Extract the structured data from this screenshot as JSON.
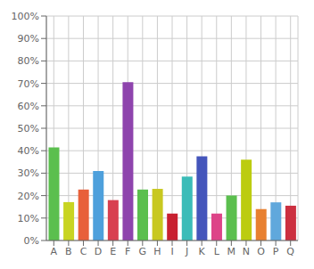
{
  "chart_data": {
    "type": "bar",
    "categories": [
      "A",
      "B",
      "C",
      "D",
      "E",
      "F",
      "G",
      "H",
      "I",
      "J",
      "K",
      "L",
      "M",
      "N",
      "O",
      "P",
      "Q"
    ],
    "values": [
      41.5,
      17.1,
      22.7,
      31.0,
      18.0,
      70.5,
      22.7,
      23.0,
      12.0,
      28.5,
      37.5,
      12.0,
      20.0,
      36.0,
      14.0,
      17.0,
      15.5
    ],
    "colors": [
      "#5BBF4E",
      "#C8D422",
      "#E8603A",
      "#4EA0DC",
      "#D84050",
      "#8E44AD",
      "#5BBF4E",
      "#C8C820",
      "#C82030",
      "#3BBCB8",
      "#4455BB",
      "#DD4488",
      "#5BBF4E",
      "#BCCC10",
      "#E88030",
      "#60A8DC",
      "#CC3040"
    ],
    "ylim": [
      0,
      100
    ],
    "yticks": [
      {
        "value": 0,
        "label": "0%"
      },
      {
        "value": 10,
        "label": "10%"
      },
      {
        "value": 20,
        "label": "20%"
      },
      {
        "value": 30,
        "label": "30%"
      },
      {
        "value": 40,
        "label": "40%"
      },
      {
        "value": 50,
        "label": "50%"
      },
      {
        "value": 60,
        "label": "60%"
      },
      {
        "value": 70,
        "label": "70%"
      },
      {
        "value": 80,
        "label": "80%"
      },
      {
        "value": 90,
        "label": "90%"
      },
      {
        "value": 100,
        "label": "100%"
      }
    ],
    "grid": true
  }
}
